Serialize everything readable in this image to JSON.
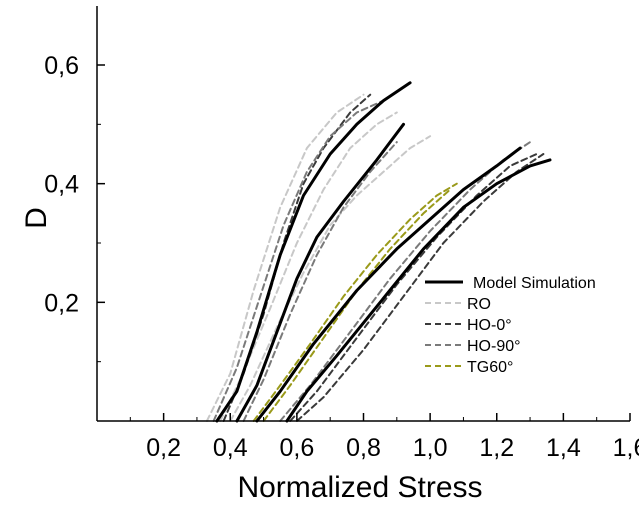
{
  "chart_data": {
    "type": "line",
    "title": "",
    "xlabel": "Normalized Stress",
    "ylabel": "D",
    "xlim": [
      0.0,
      1.6
    ],
    "ylim": [
      0.0,
      0.7
    ],
    "x_ticks": [
      0.2,
      0.4,
      0.6,
      0.8,
      1.0,
      1.2,
      1.4,
      1.6
    ],
    "x_tick_labels": [
      "0,2",
      "0,4",
      "0,6",
      "0,8",
      "1,0",
      "1,2",
      "1,4",
      "1,6"
    ],
    "y_ticks": [
      0.2,
      0.4,
      0.6
    ],
    "y_tick_labels": [
      "0,2",
      "0,4",
      "0,6"
    ],
    "grid": false,
    "legend_position": "right",
    "legend": [
      {
        "label": "Model Simulation",
        "color": "#000000",
        "dashed": false
      },
      {
        "label": "RO",
        "color": "#c8c8c8",
        "dashed": true
      },
      {
        "label": "HO-0°",
        "color": "#3a3a3a",
        "dashed": true
      },
      {
        "label": "HO-90°",
        "color": "#7a7a7a",
        "dashed": true
      },
      {
        "label": "TG60°",
        "color": "#9a9a1a",
        "dashed": true
      }
    ],
    "series": [
      {
        "name": "Model Simulation",
        "color": "#000000",
        "dashed": false,
        "width": 3,
        "points": [
          [
            0.36,
            0.0
          ],
          [
            0.42,
            0.05
          ],
          [
            0.48,
            0.15
          ],
          [
            0.55,
            0.28
          ],
          [
            0.62,
            0.38
          ],
          [
            0.7,
            0.45
          ],
          [
            0.78,
            0.5
          ],
          [
            0.86,
            0.54
          ],
          [
            0.94,
            0.57
          ]
        ]
      },
      {
        "name": "Model Simulation",
        "color": "#000000",
        "dashed": false,
        "width": 3,
        "points": [
          [
            0.42,
            0.0
          ],
          [
            0.48,
            0.06
          ],
          [
            0.54,
            0.15
          ],
          [
            0.6,
            0.24
          ],
          [
            0.66,
            0.31
          ],
          [
            0.74,
            0.37
          ],
          [
            0.84,
            0.44
          ],
          [
            0.92,
            0.5
          ]
        ]
      },
      {
        "name": "Model Simulation",
        "color": "#000000",
        "dashed": false,
        "width": 3,
        "points": [
          [
            0.48,
            0.0
          ],
          [
            0.55,
            0.05
          ],
          [
            0.65,
            0.13
          ],
          [
            0.78,
            0.22
          ],
          [
            0.9,
            0.29
          ],
          [
            1.0,
            0.34
          ],
          [
            1.1,
            0.39
          ],
          [
            1.2,
            0.43
          ],
          [
            1.27,
            0.46
          ]
        ]
      },
      {
        "name": "Model Simulation",
        "color": "#000000",
        "dashed": false,
        "width": 3,
        "points": [
          [
            0.57,
            0.0
          ],
          [
            0.63,
            0.05
          ],
          [
            0.72,
            0.11
          ],
          [
            0.85,
            0.2
          ],
          [
            0.98,
            0.29
          ],
          [
            1.1,
            0.36
          ],
          [
            1.2,
            0.4
          ],
          [
            1.3,
            0.43
          ],
          [
            1.36,
            0.44
          ]
        ]
      },
      {
        "name": "RO",
        "color": "#c8c8c8",
        "dashed": true,
        "width": 2,
        "points": [
          [
            0.33,
            0.0
          ],
          [
            0.4,
            0.08
          ],
          [
            0.47,
            0.22
          ],
          [
            0.55,
            0.36
          ],
          [
            0.63,
            0.46
          ],
          [
            0.72,
            0.52
          ],
          [
            0.8,
            0.55
          ]
        ]
      },
      {
        "name": "RO",
        "color": "#c8c8c8",
        "dashed": true,
        "width": 2,
        "points": [
          [
            0.4,
            0.0
          ],
          [
            0.46,
            0.06
          ],
          [
            0.55,
            0.17
          ],
          [
            0.62,
            0.25
          ],
          [
            0.7,
            0.33
          ],
          [
            0.78,
            0.38
          ],
          [
            0.86,
            0.42
          ],
          [
            0.94,
            0.46
          ],
          [
            1.0,
            0.48
          ]
        ]
      },
      {
        "name": "RO",
        "color": "#c8c8c8",
        "dashed": true,
        "width": 2,
        "points": [
          [
            0.37,
            0.0
          ],
          [
            0.43,
            0.07
          ],
          [
            0.52,
            0.19
          ],
          [
            0.6,
            0.3
          ],
          [
            0.68,
            0.39
          ],
          [
            0.76,
            0.46
          ],
          [
            0.84,
            0.5
          ],
          [
            0.9,
            0.52
          ]
        ]
      },
      {
        "name": "HO-0°",
        "color": "#3a3a3a",
        "dashed": true,
        "width": 2,
        "points": [
          [
            0.38,
            0.0
          ],
          [
            0.44,
            0.08
          ],
          [
            0.5,
            0.18
          ],
          [
            0.56,
            0.3
          ],
          [
            0.62,
            0.4
          ],
          [
            0.68,
            0.46
          ],
          [
            0.76,
            0.52
          ],
          [
            0.82,
            0.55
          ]
        ]
      },
      {
        "name": "HO-0°",
        "color": "#3a3a3a",
        "dashed": true,
        "width": 2,
        "points": [
          [
            0.58,
            0.0
          ],
          [
            0.66,
            0.05
          ],
          [
            0.78,
            0.14
          ],
          [
            0.9,
            0.23
          ],
          [
            1.02,
            0.31
          ],
          [
            1.14,
            0.38
          ],
          [
            1.24,
            0.43
          ],
          [
            1.32,
            0.45
          ]
        ]
      },
      {
        "name": "HO-0°",
        "color": "#3a3a3a",
        "dashed": true,
        "width": 2,
        "points": [
          [
            0.6,
            0.0
          ],
          [
            0.68,
            0.04
          ],
          [
            0.8,
            0.12
          ],
          [
            0.92,
            0.21
          ],
          [
            1.04,
            0.3
          ],
          [
            1.16,
            0.37
          ],
          [
            1.26,
            0.42
          ],
          [
            1.34,
            0.45
          ]
        ]
      },
      {
        "name": "HO-90°",
        "color": "#7a7a7a",
        "dashed": true,
        "width": 2,
        "points": [
          [
            0.35,
            0.0
          ],
          [
            0.42,
            0.09
          ],
          [
            0.49,
            0.21
          ],
          [
            0.56,
            0.33
          ],
          [
            0.63,
            0.42
          ],
          [
            0.7,
            0.48
          ],
          [
            0.78,
            0.52
          ],
          [
            0.86,
            0.54
          ]
        ]
      },
      {
        "name": "HO-90°",
        "color": "#7a7a7a",
        "dashed": true,
        "width": 2,
        "points": [
          [
            0.44,
            0.0
          ],
          [
            0.5,
            0.07
          ],
          [
            0.58,
            0.18
          ],
          [
            0.66,
            0.28
          ],
          [
            0.74,
            0.36
          ],
          [
            0.82,
            0.42
          ],
          [
            0.9,
            0.47
          ]
        ]
      },
      {
        "name": "HO-90°",
        "color": "#7a7a7a",
        "dashed": true,
        "width": 2,
        "points": [
          [
            0.55,
            0.0
          ],
          [
            0.64,
            0.06
          ],
          [
            0.76,
            0.15
          ],
          [
            0.88,
            0.24
          ],
          [
            1.0,
            0.32
          ],
          [
            1.12,
            0.39
          ],
          [
            1.22,
            0.44
          ],
          [
            1.3,
            0.47
          ]
        ]
      },
      {
        "name": "TG60°",
        "color": "#9a9a1a",
        "dashed": true,
        "width": 2,
        "points": [
          [
            0.47,
            0.0
          ],
          [
            0.55,
            0.06
          ],
          [
            0.64,
            0.13
          ],
          [
            0.74,
            0.21
          ],
          [
            0.84,
            0.28
          ],
          [
            0.94,
            0.34
          ],
          [
            1.02,
            0.38
          ],
          [
            1.08,
            0.4
          ]
        ]
      },
      {
        "name": "TG60°",
        "color": "#9a9a1a",
        "dashed": true,
        "width": 2,
        "points": [
          [
            0.5,
            0.0
          ],
          [
            0.58,
            0.06
          ],
          [
            0.68,
            0.14
          ],
          [
            0.78,
            0.22
          ],
          [
            0.88,
            0.29
          ],
          [
            0.98,
            0.35
          ],
          [
            1.06,
            0.39
          ]
        ]
      }
    ]
  }
}
